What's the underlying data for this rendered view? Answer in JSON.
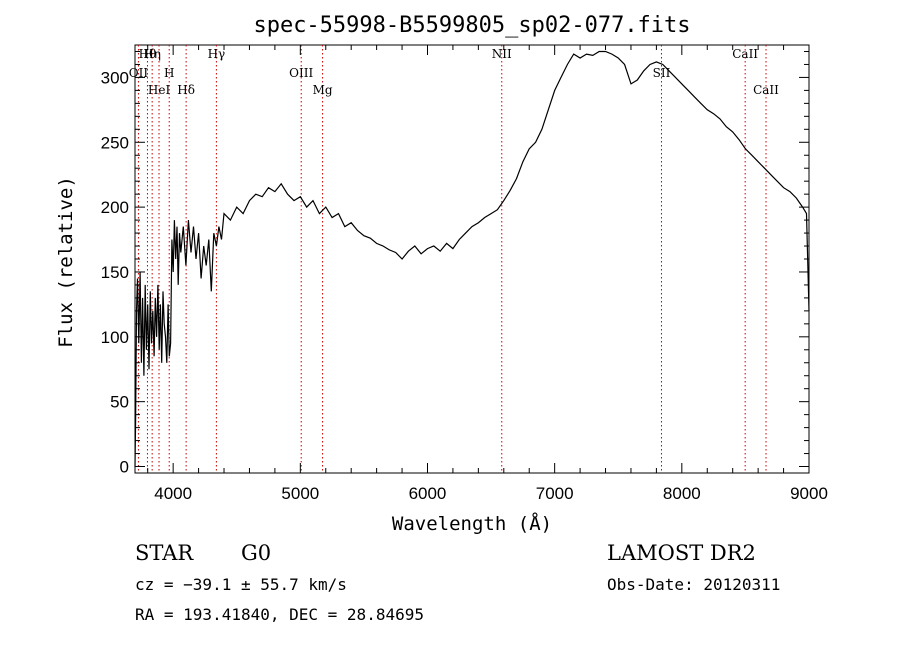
{
  "chart_data": {
    "type": "line",
    "title": "spec-55998-B5599805_sp02-077.fits",
    "xlabel": "Wavelength (Å)",
    "ylabel": "Flux (relative)",
    "xlim": [
      3700,
      9000
    ],
    "ylim": [
      -5,
      325
    ],
    "xticks": [
      4000,
      5000,
      6000,
      7000,
      8000,
      9000
    ],
    "yticks": [
      0,
      50,
      100,
      150,
      200,
      250,
      300
    ],
    "grid": false,
    "line_color": "#000000",
    "marker_color": "#cc0000",
    "series": [
      {
        "values": [
          [
            3700,
            0
          ],
          [
            3705,
            35
          ],
          [
            3712,
            120
          ],
          [
            3720,
            145
          ],
          [
            3730,
            95
          ],
          [
            3740,
            150
          ],
          [
            3750,
            80
          ],
          [
            3760,
            130
          ],
          [
            3770,
            70
          ],
          [
            3780,
            140
          ],
          [
            3790,
            90
          ],
          [
            3800,
            125
          ],
          [
            3810,
            75
          ],
          [
            3820,
            135
          ],
          [
            3830,
            95
          ],
          [
            3840,
            120
          ],
          [
            3850,
            85
          ],
          [
            3860,
            130
          ],
          [
            3870,
            100
          ],
          [
            3880,
            140
          ],
          [
            3890,
            90
          ],
          [
            3900,
            125
          ],
          [
            3910,
            80
          ],
          [
            3920,
            135
          ],
          [
            3930,
            110
          ],
          [
            3940,
            100
          ],
          [
            3950,
            80
          ],
          [
            3960,
            125
          ],
          [
            3970,
            85
          ],
          [
            3980,
            95
          ],
          [
            3990,
            175
          ],
          [
            4000,
            150
          ],
          [
            4010,
            190
          ],
          [
            4020,
            160
          ],
          [
            4030,
            185
          ],
          [
            4040,
            140
          ],
          [
            4050,
            180
          ],
          [
            4060,
            165
          ],
          [
            4080,
            185
          ],
          [
            4100,
            155
          ],
          [
            4120,
            190
          ],
          [
            4140,
            165
          ],
          [
            4160,
            185
          ],
          [
            4180,
            160
          ],
          [
            4200,
            180
          ],
          [
            4220,
            145
          ],
          [
            4240,
            170
          ],
          [
            4260,
            155
          ],
          [
            4280,
            175
          ],
          [
            4300,
            135
          ],
          [
            4320,
            180
          ],
          [
            4340,
            170
          ],
          [
            4360,
            185
          ],
          [
            4380,
            175
          ],
          [
            4400,
            195
          ],
          [
            4450,
            190
          ],
          [
            4500,
            200
          ],
          [
            4550,
            195
          ],
          [
            4600,
            205
          ],
          [
            4650,
            210
          ],
          [
            4700,
            208
          ],
          [
            4750,
            215
          ],
          [
            4800,
            212
          ],
          [
            4850,
            218
          ],
          [
            4900,
            210
          ],
          [
            4950,
            205
          ],
          [
            5000,
            208
          ],
          [
            5050,
            200
          ],
          [
            5100,
            205
          ],
          [
            5150,
            195
          ],
          [
            5200,
            200
          ],
          [
            5250,
            192
          ],
          [
            5300,
            195
          ],
          [
            5350,
            185
          ],
          [
            5400,
            188
          ],
          [
            5450,
            182
          ],
          [
            5500,
            178
          ],
          [
            5550,
            176
          ],
          [
            5600,
            172
          ],
          [
            5650,
            170
          ],
          [
            5700,
            167
          ],
          [
            5750,
            165
          ],
          [
            5800,
            160
          ],
          [
            5850,
            166
          ],
          [
            5900,
            170
          ],
          [
            5950,
            164
          ],
          [
            6000,
            168
          ],
          [
            6050,
            170
          ],
          [
            6100,
            166
          ],
          [
            6150,
            172
          ],
          [
            6200,
            168
          ],
          [
            6250,
            175
          ],
          [
            6300,
            180
          ],
          [
            6350,
            185
          ],
          [
            6400,
            188
          ],
          [
            6450,
            192
          ],
          [
            6500,
            195
          ],
          [
            6550,
            198
          ],
          [
            6600,
            205
          ],
          [
            6650,
            213
          ],
          [
            6700,
            222
          ],
          [
            6750,
            235
          ],
          [
            6800,
            245
          ],
          [
            6850,
            250
          ],
          [
            6900,
            260
          ],
          [
            6950,
            275
          ],
          [
            7000,
            290
          ],
          [
            7050,
            300
          ],
          [
            7100,
            310
          ],
          [
            7150,
            318
          ],
          [
            7200,
            315
          ],
          [
            7250,
            318
          ],
          [
            7300,
            317
          ],
          [
            7350,
            320
          ],
          [
            7400,
            320
          ],
          [
            7450,
            318
          ],
          [
            7500,
            315
          ],
          [
            7550,
            310
          ],
          [
            7600,
            295
          ],
          [
            7650,
            298
          ],
          [
            7700,
            305
          ],
          [
            7750,
            310
          ],
          [
            7800,
            312
          ],
          [
            7850,
            310
          ],
          [
            7900,
            305
          ],
          [
            7950,
            300
          ],
          [
            8000,
            295
          ],
          [
            8050,
            290
          ],
          [
            8100,
            285
          ],
          [
            8150,
            280
          ],
          [
            8200,
            275
          ],
          [
            8250,
            272
          ],
          [
            8300,
            268
          ],
          [
            8350,
            262
          ],
          [
            8400,
            258
          ],
          [
            8450,
            252
          ],
          [
            8500,
            245
          ],
          [
            8550,
            240
          ],
          [
            8600,
            235
          ],
          [
            8650,
            230
          ],
          [
            8700,
            225
          ],
          [
            8750,
            220
          ],
          [
            8800,
            215
          ],
          [
            8850,
            212
          ],
          [
            8900,
            207
          ],
          [
            8950,
            200
          ],
          [
            8980,
            195
          ],
          [
            9000,
            120
          ]
        ]
      }
    ],
    "line_markers": [
      {
        "label": "Hθ",
        "wavelength": 3798
      },
      {
        "label": "OII",
        "wavelength": 3727
      },
      {
        "label": "HeI",
        "wavelength": 3889
      },
      {
        "label": "Hη",
        "wavelength": 3835
      },
      {
        "label": "H",
        "wavelength": 3969
      },
      {
        "label": "Hδ",
        "wavelength": 4102
      },
      {
        "label": "Hγ",
        "wavelength": 4340
      },
      {
        "label": "OIII",
        "wavelength": 5007
      },
      {
        "label": "Mg",
        "wavelength": 5175
      },
      {
        "label": "NII",
        "wavelength": 6584
      },
      {
        "label": "SII",
        "wavelength": 7840
      },
      {
        "label": "CaII",
        "wavelength": 8662
      },
      {
        "label": "CaII",
        "wavelength": 8498
      }
    ]
  },
  "footer": {
    "class_label": "STAR",
    "subclass_label": "G0",
    "survey_label": "LAMOST DR2",
    "cz_text": "cz = −39.1 ± 55.7 km/s",
    "obs_date_text": "Obs-Date: 20120311",
    "radec_text": "RA = 193.41840, DEC =  28.84695"
  }
}
